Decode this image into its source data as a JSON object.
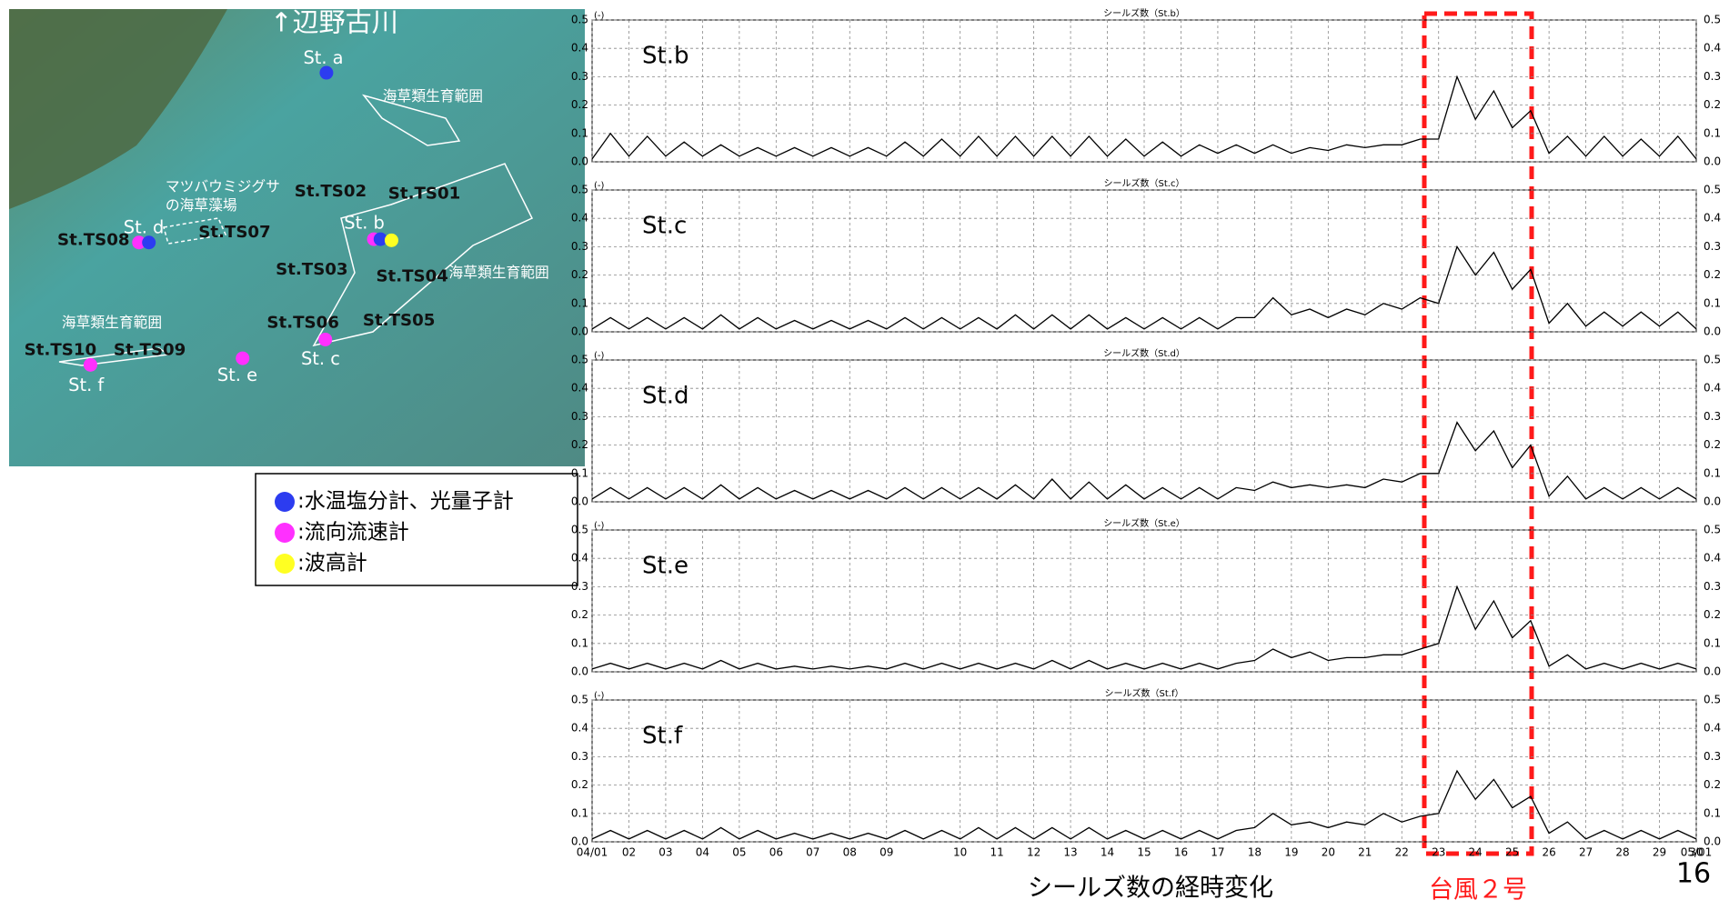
{
  "map": {
    "labels": [
      "↑辺野古川",
      "St. a",
      "海草類生育範囲",
      "マツバウミジグサ",
      "の海草藻場",
      "St.TS02",
      "St.TS01",
      "St. d",
      "St.TS07",
      "St.TS08",
      "St. b",
      "St.TS03",
      "St.TS04",
      "海草類生育範囲",
      "St.TS06",
      "St.TS05",
      "海草類生育範囲",
      "St.TS10",
      "St.TS09",
      "St. c",
      "St. e",
      "St. f"
    ]
  },
  "legend": {
    "items": [
      {
        "color": "#2c3cf0",
        "label": ":水温塩分計、光量子計"
      },
      {
        "color": "#ff30ff",
        "label": ":流向流速計"
      },
      {
        "color": "#ffff22",
        "label": ":波高計"
      }
    ]
  },
  "chart_data": [
    {
      "type": "line",
      "title": "シールズ数（St.b）",
      "y_unit": "(-)",
      "annotation": "St.b",
      "x": [
        0,
        0.5,
        1,
        1.5,
        2,
        2.5,
        3,
        3.5,
        4,
        4.5,
        5,
        5.5,
        6,
        6.5,
        7,
        7.5,
        8,
        8.5,
        9,
        9.5,
        10,
        10.5,
        11,
        11.5,
        12,
        12.5,
        13,
        13.5,
        14,
        14.5,
        15,
        15.5,
        16,
        16.5,
        17,
        17.5,
        18,
        18.5,
        19,
        19.5,
        20,
        20.5,
        21,
        21.5,
        22,
        22.5,
        23,
        23.5,
        24,
        24.5,
        25,
        25.5,
        26,
        26.5,
        27,
        27.5,
        28,
        28.5,
        29,
        29.5,
        30
      ],
      "xlim": [
        0,
        30
      ],
      "xticks": [
        0,
        1,
        2,
        3,
        4,
        5,
        6,
        7,
        8,
        9,
        10,
        11,
        12,
        13,
        14,
        15,
        16,
        17,
        18,
        19,
        20,
        21,
        22,
        23,
        24,
        25,
        26,
        27,
        28,
        29,
        30
      ],
      "ylim": [
        0,
        0.5
      ],
      "yticks": [
        {
          "value": 0,
          "label": "0.0"
        },
        0.1,
        0.2,
        0.3,
        0.4,
        0.5
      ],
      "grid": true,
      "series": [
        {
          "color": "#000000",
          "values": [
            0.01,
            0.1,
            0.02,
            0.09,
            0.02,
            0.07,
            0.02,
            0.06,
            0.02,
            0.05,
            0.02,
            0.05,
            0.02,
            0.05,
            0.02,
            0.05,
            0.02,
            0.07,
            0.02,
            0.08,
            0.02,
            0.09,
            0.02,
            0.09,
            0.02,
            0.09,
            0.02,
            0.09,
            0.02,
            0.08,
            0.02,
            0.07,
            0.02,
            0.06,
            0.03,
            0.06,
            0.03,
            0.06,
            0.03,
            0.05,
            0.04,
            0.06,
            0.05,
            0.06,
            0.06,
            0.08,
            0.08,
            0.3,
            0.15,
            0.25,
            0.12,
            0.18,
            0.03,
            0.09,
            0.02,
            0.09,
            0.02,
            0.08,
            0.02,
            0.09,
            0.01
          ]
        }
      ]
    },
    {
      "type": "line",
      "title": "シールズ数（St.c）",
      "y_unit": "(-)",
      "annotation": "St.c",
      "x": [
        0,
        0.5,
        1,
        1.5,
        2,
        2.5,
        3,
        3.5,
        4,
        4.5,
        5,
        5.5,
        6,
        6.5,
        7,
        7.5,
        8,
        8.5,
        9,
        9.5,
        10,
        10.5,
        11,
        11.5,
        12,
        12.5,
        13,
        13.5,
        14,
        14.5,
        15,
        15.5,
        16,
        16.5,
        17,
        17.5,
        18,
        18.5,
        19,
        19.5,
        20,
        20.5,
        21,
        21.5,
        22,
        22.5,
        23,
        23.5,
        24,
        24.5,
        25,
        25.5,
        26,
        26.5,
        27,
        27.5,
        28,
        28.5,
        29,
        29.5,
        30
      ],
      "xlim": [
        0,
        30
      ],
      "xticks": [
        0,
        1,
        2,
        3,
        4,
        5,
        6,
        7,
        8,
        9,
        10,
        11,
        12,
        13,
        14,
        15,
        16,
        17,
        18,
        19,
        20,
        21,
        22,
        23,
        24,
        25,
        26,
        27,
        28,
        29,
        30
      ],
      "ylim": [
        0,
        0.5
      ],
      "yticks": [
        {
          "value": 0,
          "label": "0.0"
        },
        0.1,
        0.2,
        0.3,
        0.4,
        0.5
      ],
      "grid": true,
      "series": [
        {
          "color": "#000000",
          "values": [
            0.01,
            0.05,
            0.01,
            0.05,
            0.01,
            0.05,
            0.01,
            0.06,
            0.01,
            0.05,
            0.01,
            0.04,
            0.01,
            0.04,
            0.01,
            0.04,
            0.01,
            0.05,
            0.01,
            0.05,
            0.01,
            0.05,
            0.01,
            0.06,
            0.01,
            0.06,
            0.01,
            0.06,
            0.01,
            0.05,
            0.01,
            0.05,
            0.01,
            0.05,
            0.01,
            0.05,
            0.05,
            0.12,
            0.06,
            0.08,
            0.05,
            0.08,
            0.06,
            0.1,
            0.08,
            0.12,
            0.1,
            0.3,
            0.2,
            0.28,
            0.15,
            0.22,
            0.03,
            0.1,
            0.02,
            0.07,
            0.02,
            0.07,
            0.02,
            0.07,
            0.01
          ]
        }
      ]
    },
    {
      "type": "line",
      "title": "シールズ数（St.d）",
      "y_unit": "(-)",
      "annotation": "St.d",
      "x": [
        0,
        0.5,
        1,
        1.5,
        2,
        2.5,
        3,
        3.5,
        4,
        4.5,
        5,
        5.5,
        6,
        6.5,
        7,
        7.5,
        8,
        8.5,
        9,
        9.5,
        10,
        10.5,
        11,
        11.5,
        12,
        12.5,
        13,
        13.5,
        14,
        14.5,
        15,
        15.5,
        16,
        16.5,
        17,
        17.5,
        18,
        18.5,
        19,
        19.5,
        20,
        20.5,
        21,
        21.5,
        22,
        22.5,
        23,
        23.5,
        24,
        24.5,
        25,
        25.5,
        26,
        26.5,
        27,
        27.5,
        28,
        28.5,
        29,
        29.5,
        30
      ],
      "xlim": [
        0,
        30
      ],
      "xticks": [
        0,
        1,
        2,
        3,
        4,
        5,
        6,
        7,
        8,
        9,
        10,
        11,
        12,
        13,
        14,
        15,
        16,
        17,
        18,
        19,
        20,
        21,
        22,
        23,
        24,
        25,
        26,
        27,
        28,
        29,
        30
      ],
      "ylim": [
        0,
        0.5
      ],
      "yticks": [
        {
          "value": 0,
          "label": "0.0"
        },
        0.1,
        0.2,
        0.3,
        0.4,
        0.5
      ],
      "grid": true,
      "series": [
        {
          "color": "#000000",
          "values": [
            0.01,
            0.05,
            0.01,
            0.05,
            0.01,
            0.05,
            0.01,
            0.06,
            0.01,
            0.05,
            0.01,
            0.04,
            0.01,
            0.04,
            0.01,
            0.04,
            0.01,
            0.05,
            0.01,
            0.05,
            0.01,
            0.05,
            0.01,
            0.06,
            0.01,
            0.08,
            0.01,
            0.07,
            0.01,
            0.06,
            0.01,
            0.05,
            0.01,
            0.05,
            0.01,
            0.05,
            0.04,
            0.07,
            0.05,
            0.06,
            0.05,
            0.06,
            0.05,
            0.08,
            0.07,
            0.1,
            0.1,
            0.28,
            0.18,
            0.25,
            0.12,
            0.2,
            0.02,
            0.09,
            0.01,
            0.05,
            0.01,
            0.05,
            0.01,
            0.05,
            0.01
          ]
        }
      ]
    },
    {
      "type": "line",
      "title": "シールズ数（St.e）",
      "y_unit": "(-)",
      "annotation": "St.e",
      "x": [
        0,
        0.5,
        1,
        1.5,
        2,
        2.5,
        3,
        3.5,
        4,
        4.5,
        5,
        5.5,
        6,
        6.5,
        7,
        7.5,
        8,
        8.5,
        9,
        9.5,
        10,
        10.5,
        11,
        11.5,
        12,
        12.5,
        13,
        13.5,
        14,
        14.5,
        15,
        15.5,
        16,
        16.5,
        17,
        17.5,
        18,
        18.5,
        19,
        19.5,
        20,
        20.5,
        21,
        21.5,
        22,
        22.5,
        23,
        23.5,
        24,
        24.5,
        25,
        25.5,
        26,
        26.5,
        27,
        27.5,
        28,
        28.5,
        29,
        29.5,
        30
      ],
      "xlim": [
        0,
        30
      ],
      "xticks": [
        0,
        1,
        2,
        3,
        4,
        5,
        6,
        7,
        8,
        9,
        10,
        11,
        12,
        13,
        14,
        15,
        16,
        17,
        18,
        19,
        20,
        21,
        22,
        23,
        24,
        25,
        26,
        27,
        28,
        29,
        30
      ],
      "ylim": [
        0,
        0.5
      ],
      "yticks": [
        {
          "value": 0,
          "label": "0.0"
        },
        0.1,
        0.2,
        0.3,
        0.4,
        0.5
      ],
      "grid": true,
      "series": [
        {
          "color": "#000000",
          "values": [
            0.01,
            0.03,
            0.01,
            0.03,
            0.01,
            0.03,
            0.01,
            0.04,
            0.01,
            0.03,
            0.01,
            0.02,
            0.01,
            0.02,
            0.01,
            0.02,
            0.01,
            0.03,
            0.01,
            0.03,
            0.01,
            0.03,
            0.01,
            0.03,
            0.01,
            0.04,
            0.01,
            0.04,
            0.01,
            0.03,
            0.01,
            0.03,
            0.01,
            0.03,
            0.01,
            0.03,
            0.04,
            0.08,
            0.05,
            0.07,
            0.04,
            0.05,
            0.05,
            0.06,
            0.06,
            0.08,
            0.1,
            0.3,
            0.15,
            0.25,
            0.12,
            0.18,
            0.02,
            0.06,
            0.01,
            0.03,
            0.01,
            0.03,
            0.01,
            0.03,
            0.01
          ]
        }
      ]
    },
    {
      "type": "line",
      "title": "シールズ数（St.f）",
      "y_unit": "(-)",
      "annotation": "St.f",
      "x": [
        0,
        0.5,
        1,
        1.5,
        2,
        2.5,
        3,
        3.5,
        4,
        4.5,
        5,
        5.5,
        6,
        6.5,
        7,
        7.5,
        8,
        8.5,
        9,
        9.5,
        10,
        10.5,
        11,
        11.5,
        12,
        12.5,
        13,
        13.5,
        14,
        14.5,
        15,
        15.5,
        16,
        16.5,
        17,
        17.5,
        18,
        18.5,
        19,
        19.5,
        20,
        20.5,
        21,
        21.5,
        22,
        22.5,
        23,
        23.5,
        24,
        24.5,
        25,
        25.5,
        26,
        26.5,
        27,
        27.5,
        28,
        28.5,
        29,
        29.5,
        30
      ],
      "xlim": [
        0,
        30
      ],
      "xticks": [
        {
          "value": 0,
          "label": "04/01"
        },
        {
          "value": 1,
          "label": "02"
        },
        {
          "value": 2,
          "label": "03"
        },
        {
          "value": 3,
          "label": "04"
        },
        {
          "value": 4,
          "label": "05"
        },
        {
          "value": 5,
          "label": "06"
        },
        {
          "value": 6,
          "label": "07"
        },
        {
          "value": 7,
          "label": "08"
        },
        {
          "value": 8,
          "label": "09"
        },
        10,
        11,
        12,
        13,
        14,
        15,
        16,
        17,
        18,
        19,
        20,
        21,
        22,
        23,
        24,
        25,
        26,
        27,
        28,
        29,
        30,
        {
          "value": 30,
          "label": "05/01"
        }
      ],
      "ylim": [
        0,
        0.5
      ],
      "yticks": [
        {
          "value": 0,
          "label": "0.0"
        },
        0.1,
        0.2,
        0.3,
        0.4,
        0.5
      ],
      "grid": true,
      "series": [
        {
          "color": "#000000",
          "values": [
            0.01,
            0.04,
            0.01,
            0.04,
            0.01,
            0.04,
            0.01,
            0.05,
            0.01,
            0.04,
            0.01,
            0.03,
            0.01,
            0.03,
            0.01,
            0.03,
            0.01,
            0.04,
            0.01,
            0.04,
            0.01,
            0.05,
            0.01,
            0.05,
            0.01,
            0.05,
            0.01,
            0.05,
            0.01,
            0.04,
            0.01,
            0.04,
            0.01,
            0.04,
            0.01,
            0.04,
            0.05,
            0.1,
            0.06,
            0.07,
            0.05,
            0.07,
            0.06,
            0.1,
            0.07,
            0.09,
            0.1,
            0.25,
            0.15,
            0.22,
            0.12,
            0.16,
            0.03,
            0.07,
            0.01,
            0.04,
            0.01,
            0.04,
            0.01,
            0.04,
            0.01
          ]
        }
      ]
    }
  ],
  "caption": "シールズ数の経時変化",
  "highlight_label": "台風２号",
  "page_number": "16"
}
